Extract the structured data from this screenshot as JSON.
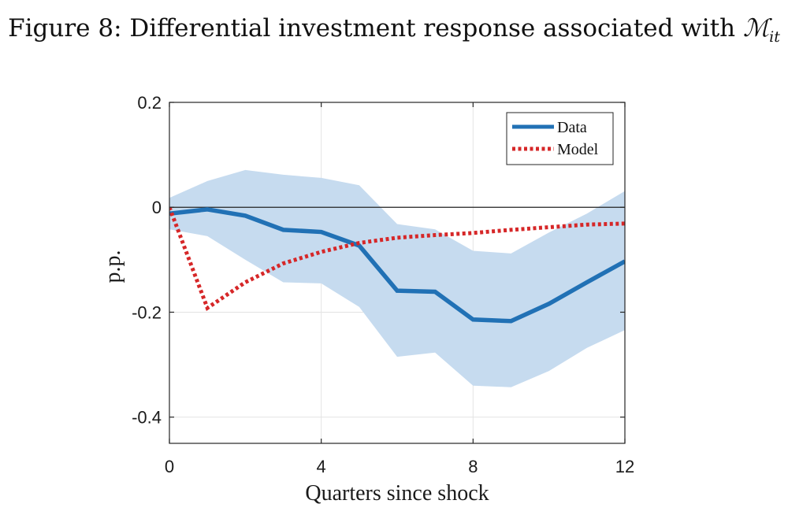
{
  "title": {
    "prefix": "Figure 8: Differential investment response associated with",
    "symbol": "ℳ",
    "subscript": "it"
  },
  "colors": {
    "data": "#2171b5",
    "model": "#d62728",
    "band": "#c6dbef",
    "zero_line": "#222222",
    "grid": "#e3e3e3"
  },
  "chart_data": {
    "type": "line",
    "title": "Figure 8: Differential investment response associated with ℳit",
    "xlabel": "Quarters since shock",
    "ylabel": "p.p.",
    "xlim": [
      0,
      12
    ],
    "ylim": [
      -0.45,
      0.2
    ],
    "xticks": [
      0,
      4,
      8,
      12
    ],
    "xtick_labels": [
      "0",
      "4",
      "8",
      "12"
    ],
    "yticks": [
      0.2,
      0,
      -0.2,
      -0.4
    ],
    "ytick_labels": [
      "0.2",
      "0",
      "-0.2",
      "-0.4"
    ],
    "grid": true,
    "legend_position": "top-right",
    "x": [
      0,
      1,
      2,
      3,
      4,
      5,
      6,
      7,
      8,
      9,
      10,
      11,
      12
    ],
    "series": [
      {
        "name": "Data",
        "style": "solid",
        "values": [
          -0.012,
          -0.004,
          -0.016,
          -0.043,
          -0.047,
          -0.073,
          -0.159,
          -0.161,
          -0.214,
          -0.217,
          -0.184,
          -0.143,
          -0.103
        ]
      },
      {
        "name": "Model",
        "style": "dotted",
        "values": [
          0.0,
          -0.192,
          -0.143,
          -0.107,
          -0.085,
          -0.068,
          -0.058,
          -0.053,
          -0.049,
          -0.043,
          -0.038,
          -0.033,
          -0.031
        ]
      }
    ],
    "confidence_band": {
      "series": "Data",
      "upper": [
        0.018,
        0.05,
        0.071,
        0.062,
        0.056,
        0.042,
        -0.032,
        -0.042,
        -0.083,
        -0.088,
        -0.048,
        -0.012,
        0.031
      ],
      "lower": [
        -0.042,
        -0.055,
        -0.1,
        -0.143,
        -0.145,
        -0.19,
        -0.285,
        -0.277,
        -0.34,
        -0.343,
        -0.312,
        -0.268,
        -0.234
      ]
    }
  }
}
